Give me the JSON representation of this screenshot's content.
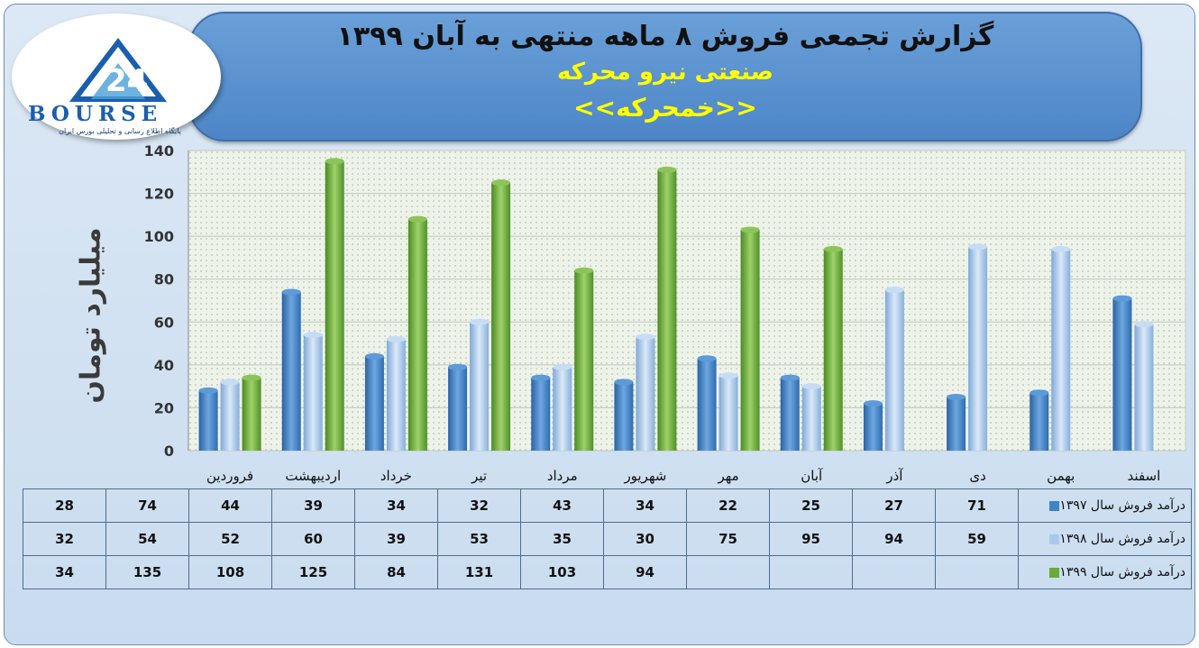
{
  "header": {
    "title_line1": "گزارش تجمعی فروش ۸ ماهه منتهی به آبان ۱۳۹۹",
    "title_line2": "صنعتی نیرو محرکه",
    "title_line3": "<<خمحرکه>>"
  },
  "logo": {
    "text": "BOURSE",
    "number": "24",
    "subtitle": "پایگاه اطلاع رسانی و تحلیلی بورس ایران"
  },
  "colors": {
    "s1397": "#3d85c6",
    "s1398": "#a9c9ec",
    "s1399": "#6aaa3a",
    "banner": "#5590cf",
    "title_accent": "#ffff00"
  },
  "chart_data": {
    "type": "bar",
    "ylabel": "میلیارد تومان",
    "ylim": [
      0,
      140
    ],
    "yticks": [
      0,
      20,
      40,
      60,
      80,
      100,
      120,
      140
    ],
    "grid": true,
    "categories": [
      "فروردین",
      "اردیبهشت",
      "خرداد",
      "تیر",
      "مرداد",
      "شهریور",
      "مهر",
      "آبان",
      "آذر",
      "دی",
      "بهمن",
      "اسفند"
    ],
    "series": [
      {
        "name": "درآمد فروش سال ۱۳۹۷",
        "values": [
          28,
          74,
          44,
          39,
          34,
          32,
          43,
          34,
          22,
          25,
          27,
          71
        ]
      },
      {
        "name": "درآمد فروش سال ۱۳۹۸",
        "values": [
          32,
          54,
          52,
          60,
          39,
          53,
          35,
          30,
          75,
          95,
          94,
          59
        ]
      },
      {
        "name": "درآمد فروش سال ۱۳۹۹",
        "values": [
          34,
          135,
          108,
          125,
          84,
          131,
          103,
          94,
          null,
          null,
          null,
          null
        ]
      }
    ]
  }
}
